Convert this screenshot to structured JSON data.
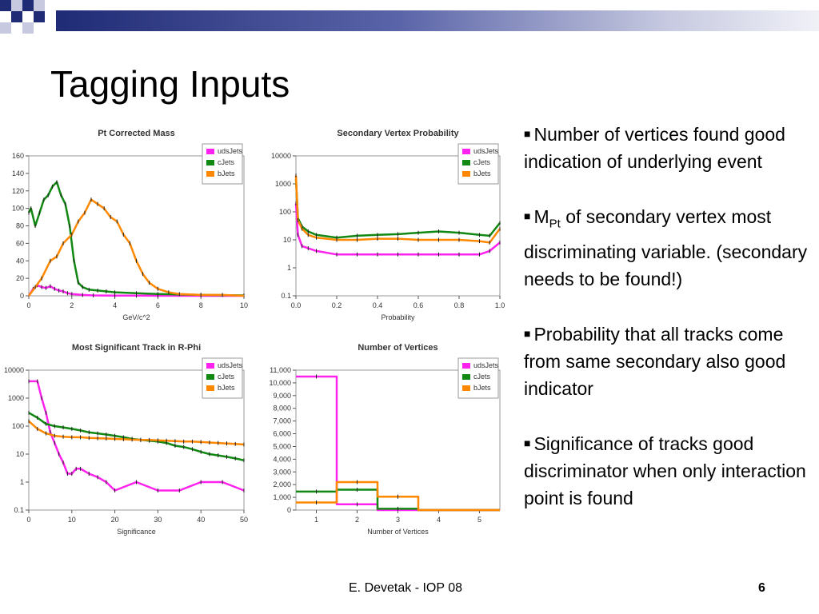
{
  "slide": {
    "title": "Tagging Inputs",
    "footer": "E. Devetak - IOP 08",
    "page_number": "6",
    "accent_color": "#1f2b75"
  },
  "bullets": [
    {
      "text": "Number of vertices found good indication of underlying event"
    },
    {
      "prefix": "M",
      "sub": "Pt",
      "text": " of secondary vertex most discriminating variable. (secondary needs to be found!)"
    },
    {
      "text": "Probability that all tracks come from same secondary also  good indicator"
    },
    {
      "text": "Significance of tracks good discriminator when only interaction point is found"
    }
  ],
  "chart_data": [
    {
      "type": "line",
      "title": "Pt Corrected Mass",
      "xlabel": "GeV/c^2",
      "ylabel": "",
      "xlim": [
        0,
        10
      ],
      "ylim": [
        0,
        160
      ],
      "yscale": "linear",
      "xticks": [
        "0",
        "2",
        "4",
        "6",
        "8",
        "10"
      ],
      "yticks": [
        "0",
        "20",
        "40",
        "60",
        "80",
        "100",
        "120",
        "140",
        "160"
      ],
      "legend_position": "top-right",
      "series": [
        {
          "name": "udsJets",
          "color": "#ff22ee",
          "x": [
            0,
            0.2,
            0.4,
            0.6,
            0.8,
            1.0,
            1.2,
            1.4,
            1.6,
            1.8,
            2.0,
            2.5,
            3.0,
            4.0,
            5.0,
            6.0,
            8.0,
            10.0
          ],
          "y": [
            0,
            8,
            12,
            10,
            9,
            11,
            8,
            6,
            5,
            3,
            2,
            1,
            0.5,
            0.3,
            0.2,
            0.1,
            0,
            0
          ]
        },
        {
          "name": "cJets",
          "color": "#118811",
          "x": [
            0,
            0.1,
            0.3,
            0.5,
            0.7,
            0.9,
            1.1,
            1.3,
            1.5,
            1.7,
            1.9,
            2.1,
            2.3,
            2.5,
            2.8,
            3.2,
            3.6,
            4.0,
            5.0,
            6.0,
            8.0,
            10.0
          ],
          "y": [
            95,
            100,
            80,
            95,
            110,
            115,
            125,
            130,
            115,
            105,
            80,
            40,
            15,
            10,
            7,
            6,
            5,
            4,
            3,
            2,
            1,
            0.5
          ]
        },
        {
          "name": "bJets",
          "color": "#ff8800",
          "x": [
            0,
            0.3,
            0.6,
            1.0,
            1.3,
            1.6,
            2.0,
            2.3,
            2.6,
            2.9,
            3.2,
            3.5,
            3.8,
            4.1,
            4.4,
            4.7,
            5.0,
            5.3,
            5.6,
            6.0,
            6.5,
            7.0,
            8.0,
            9.0,
            10.0
          ],
          "y": [
            0,
            10,
            20,
            40,
            45,
            60,
            70,
            85,
            95,
            110,
            105,
            100,
            90,
            85,
            70,
            60,
            40,
            25,
            15,
            8,
            4,
            2,
            1,
            1,
            0
          ]
        }
      ]
    },
    {
      "type": "line",
      "title": "Secondary Vertex Probability",
      "xlabel": "Probability",
      "ylabel": "",
      "xlim": [
        0,
        1
      ],
      "ylim": [
        0.1,
        10000
      ],
      "yscale": "log",
      "xticks": [
        "0.0",
        "0.2",
        "0.4",
        "0.6",
        "0.8",
        "1.0"
      ],
      "yticks": [
        "0.1",
        "1",
        "10",
        "100",
        "1000",
        "10000"
      ],
      "legend_position": "top-right",
      "series": [
        {
          "name": "udsJets",
          "color": "#ff22ee",
          "x": [
            0,
            0.01,
            0.03,
            0.06,
            0.1,
            0.2,
            0.3,
            0.4,
            0.5,
            0.6,
            0.7,
            0.8,
            0.9,
            0.95,
            1.0
          ],
          "y": [
            200,
            15,
            6,
            5,
            4,
            3,
            3,
            3,
            3,
            3,
            3,
            3,
            3,
            4,
            8
          ]
        },
        {
          "name": "cJets",
          "color": "#118811",
          "x": [
            0,
            0.01,
            0.03,
            0.06,
            0.1,
            0.2,
            0.3,
            0.4,
            0.5,
            0.6,
            0.7,
            0.8,
            0.9,
            0.95,
            1.0
          ],
          "y": [
            1500,
            60,
            30,
            20,
            15,
            12,
            14,
            15,
            16,
            18,
            20,
            18,
            15,
            14,
            40
          ]
        },
        {
          "name": "bJets",
          "color": "#ff8800",
          "x": [
            0,
            0.01,
            0.03,
            0.06,
            0.1,
            0.2,
            0.3,
            0.4,
            0.5,
            0.6,
            0.7,
            0.8,
            0.9,
            0.95,
            1.0
          ],
          "y": [
            2000,
            50,
            25,
            15,
            12,
            10,
            10,
            11,
            11,
            10,
            10,
            10,
            9,
            8,
            25
          ]
        }
      ]
    },
    {
      "type": "line",
      "title": "Most Significant Track in R-Phi",
      "xlabel": "Significance",
      "ylabel": "",
      "xlim": [
        0,
        50
      ],
      "ylim": [
        0.1,
        10000
      ],
      "yscale": "log",
      "xticks": [
        "0",
        "10",
        "20",
        "30",
        "40",
        "50"
      ],
      "yticks": [
        "0.1",
        "1",
        "10",
        "100",
        "1000",
        "10000"
      ],
      "legend_position": "top-right",
      "series": [
        {
          "name": "udsJets",
          "color": "#ff22ee",
          "x": [
            0,
            2,
            3,
            4,
            5,
            6,
            7,
            8,
            9,
            10,
            11,
            12,
            14,
            16,
            18,
            20,
            25,
            30,
            35,
            40,
            45,
            50
          ],
          "y": [
            4000,
            4000,
            1000,
            300,
            60,
            25,
            10,
            5,
            2,
            2,
            3,
            3,
            2,
            1.5,
            1,
            0.5,
            1,
            0.5,
            0.5,
            1,
            1,
            0.5
          ]
        },
        {
          "name": "cJets",
          "color": "#118811",
          "x": [
            0,
            2,
            4,
            6,
            8,
            10,
            12,
            14,
            16,
            18,
            20,
            22,
            24,
            26,
            28,
            30,
            32,
            34,
            36,
            38,
            40,
            42,
            44,
            46,
            48,
            50
          ],
          "y": [
            300,
            200,
            120,
            100,
            90,
            80,
            70,
            60,
            55,
            50,
            45,
            40,
            35,
            32,
            30,
            28,
            25,
            20,
            18,
            15,
            12,
            10,
            9,
            8,
            7,
            6
          ]
        },
        {
          "name": "bJets",
          "color": "#ff8800",
          "x": [
            0,
            2,
            4,
            6,
            8,
            10,
            12,
            14,
            16,
            18,
            20,
            22,
            24,
            26,
            28,
            30,
            32,
            34,
            36,
            38,
            40,
            42,
            44,
            46,
            48,
            50
          ],
          "y": [
            150,
            80,
            55,
            45,
            42,
            40,
            40,
            38,
            37,
            36,
            35,
            34,
            33,
            32,
            32,
            31,
            30,
            29,
            28,
            28,
            27,
            26,
            25,
            24,
            23,
            22
          ]
        }
      ]
    },
    {
      "type": "line",
      "title": "Number of Vertices",
      "xlabel": "Number of Vertices",
      "ylabel": "",
      "xlim": [
        0.5,
        5.5
      ],
      "ylim": [
        0,
        11000
      ],
      "yscale": "linear",
      "xticks": [
        "1",
        "2",
        "3",
        "4",
        "5"
      ],
      "yticks": [
        "0",
        "1,000",
        "2,000",
        "3,000",
        "4,000",
        "5,000",
        "6,000",
        "7,000",
        "8,000",
        "9,000",
        "10,000",
        "11,000"
      ],
      "legend_position": "top-right",
      "series": [
        {
          "name": "udsJets",
          "color": "#ff22ee",
          "x": [
            1,
            2,
            3,
            4,
            5
          ],
          "y": [
            10500,
            450,
            0,
            0,
            0
          ]
        },
        {
          "name": "cJets",
          "color": "#118811",
          "x": [
            1,
            2,
            3,
            4,
            5
          ],
          "y": [
            1450,
            1600,
            100,
            0,
            0
          ]
        },
        {
          "name": "bJets",
          "color": "#ff8800",
          "x": [
            1,
            2,
            3,
            4,
            5
          ],
          "y": [
            600,
            2200,
            1050,
            0,
            0
          ]
        }
      ]
    }
  ]
}
